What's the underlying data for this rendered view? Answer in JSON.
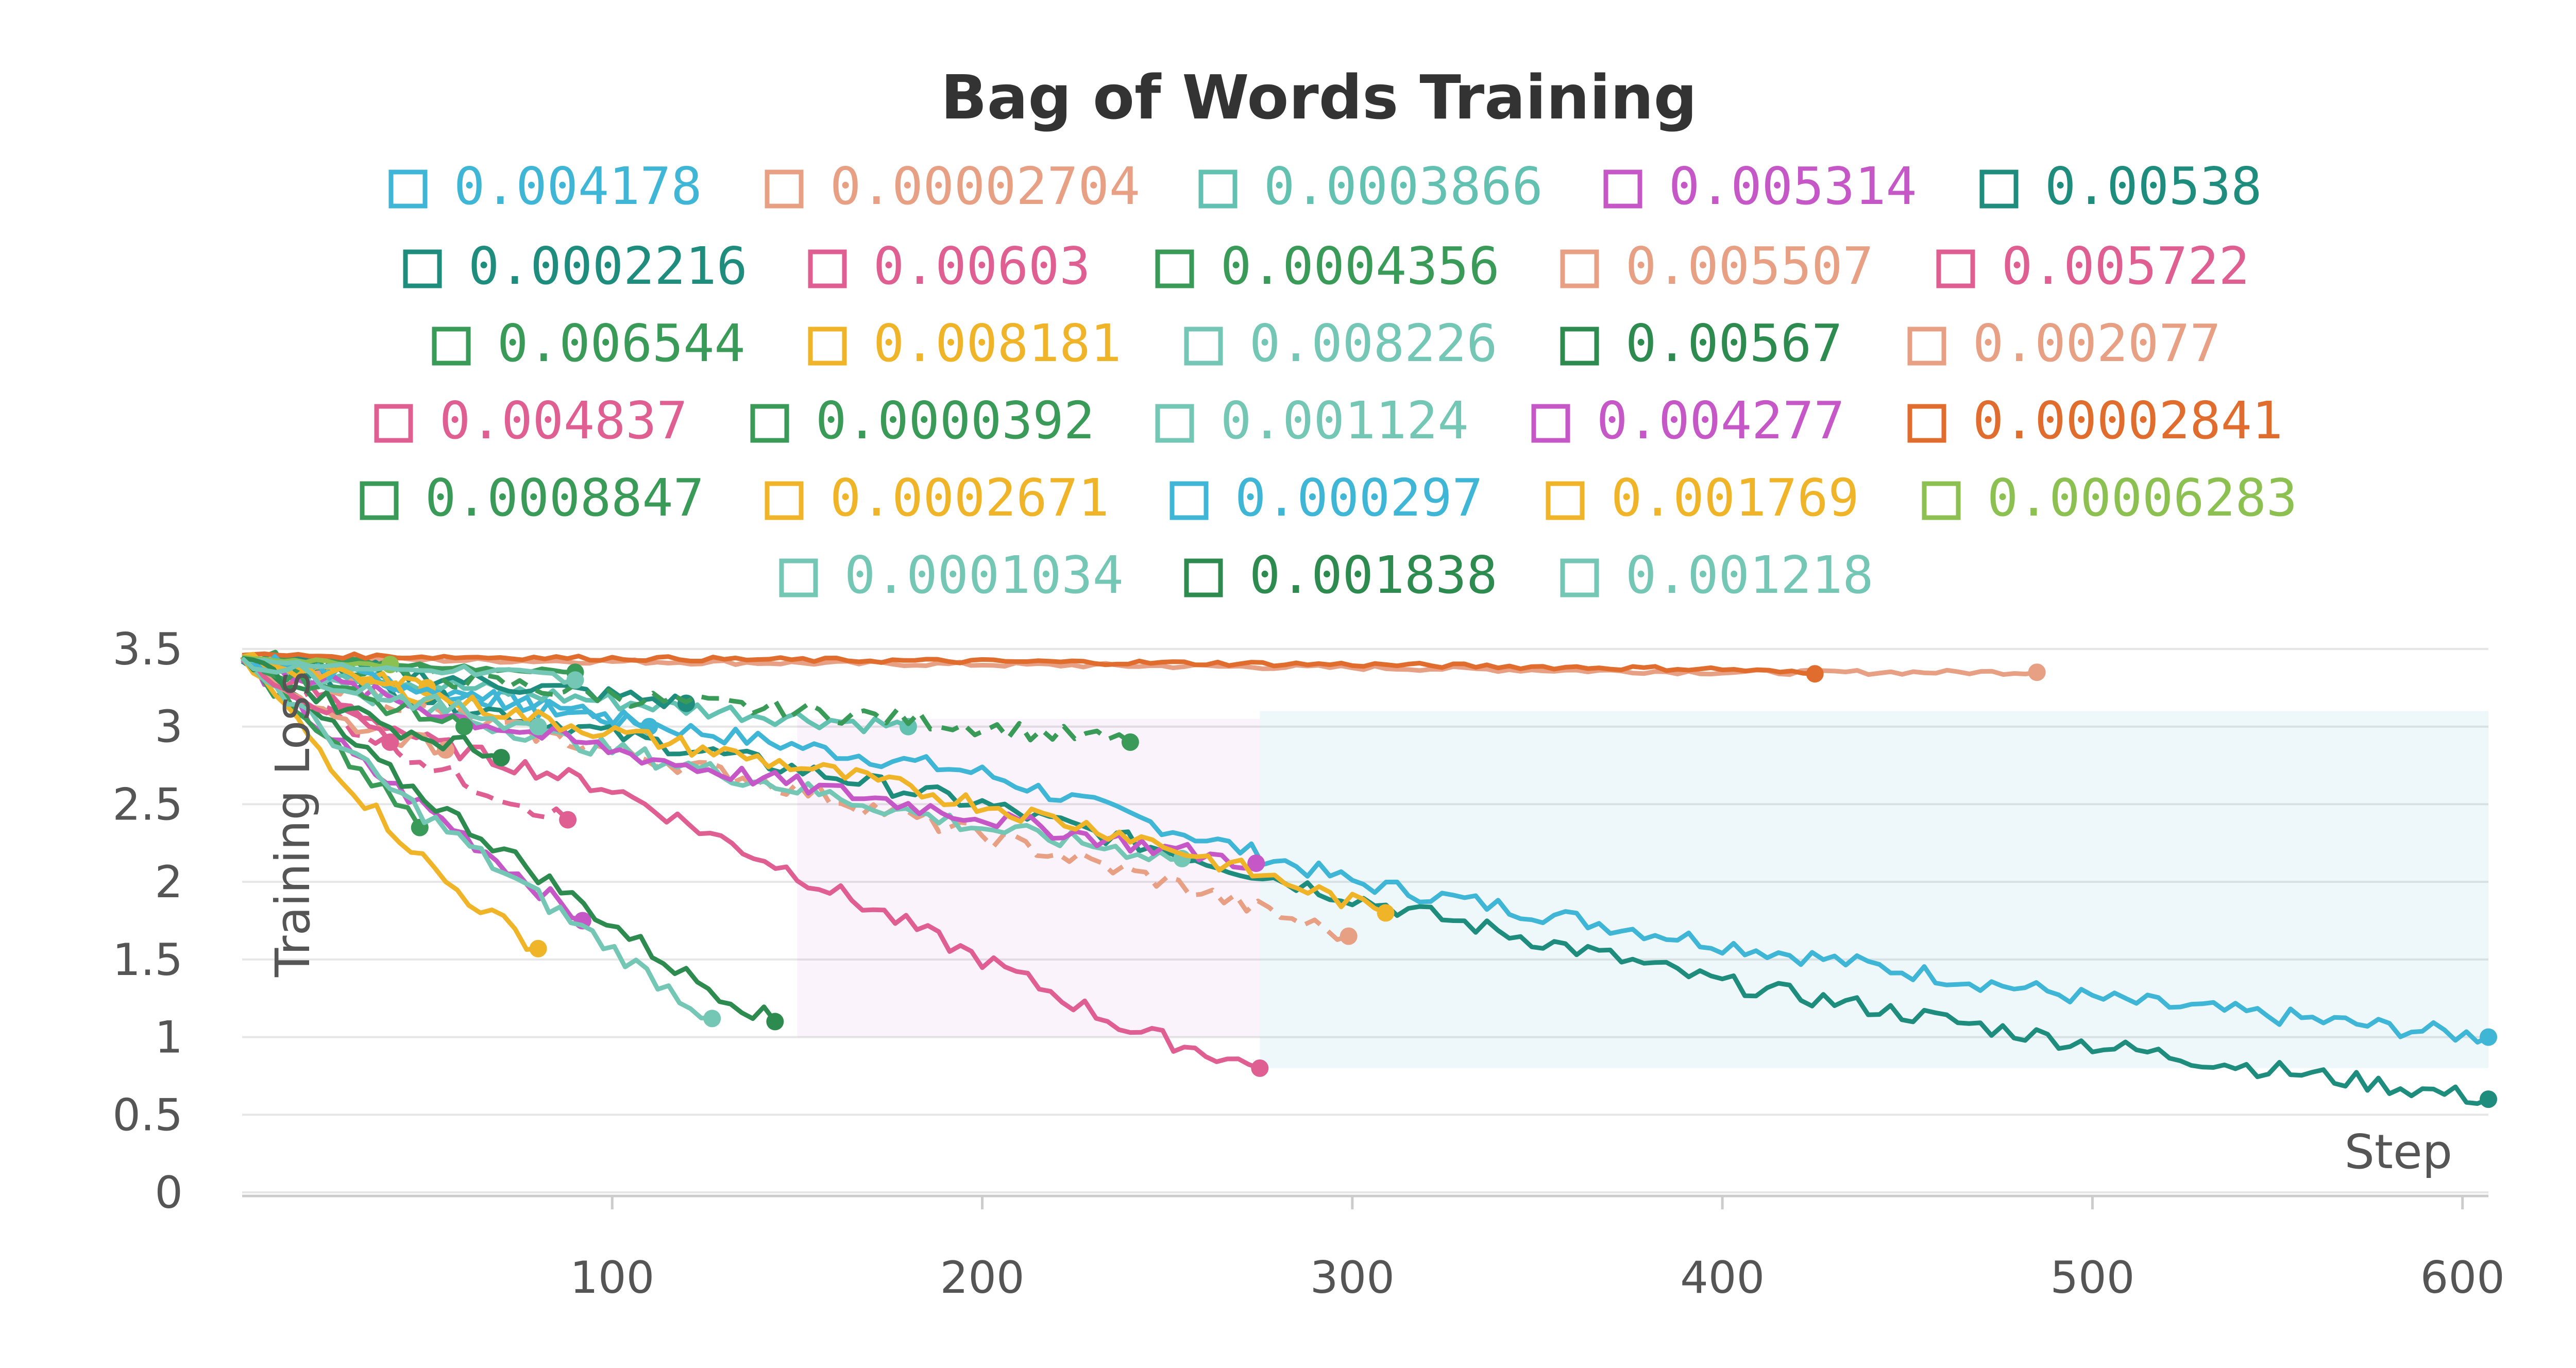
{
  "chart_data": {
    "type": "line",
    "title": "Bag of Words Training",
    "xlabel": "Step",
    "ylabel": "Training Loss",
    "xlim": [
      0,
      607
    ],
    "ylim": [
      0,
      3.5
    ],
    "x_ticks": [
      100,
      200,
      300,
      400,
      500,
      600
    ],
    "y_ticks": [
      0,
      0.5,
      1,
      1.5,
      2,
      2.5,
      3,
      3.5
    ],
    "y_tick_labels": [
      "0",
      "0.5",
      "1",
      "1.5",
      "2",
      "2.5",
      "3",
      "3.5"
    ],
    "grid": true,
    "legend_position": "top",
    "series": [
      {
        "name": "0.004178",
        "color": "#3fb6d6",
        "dash": false,
        "x": [
          0,
          100,
          200,
          300,
          400,
          500,
          607
        ],
        "y": [
          3.45,
          3.05,
          2.7,
          2.0,
          1.6,
          1.25,
          1.0
        ]
      },
      {
        "name": "0.00002704",
        "color": "#e8a084",
        "dash": false,
        "x": [
          0,
          100,
          200,
          300,
          400,
          485
        ],
        "y": [
          3.44,
          3.42,
          3.4,
          3.38,
          3.35,
          3.35
        ]
      },
      {
        "name": "0.0003866",
        "color": "#62c1b0",
        "dash": false,
        "x": [
          0,
          60,
          120,
          180
        ],
        "y": [
          3.43,
          3.25,
          3.12,
          3.0
        ]
      },
      {
        "name": "0.005314",
        "color": "#c557c7",
        "dash": false,
        "x": [
          0,
          30,
          60,
          92
        ],
        "y": [
          3.45,
          2.8,
          2.3,
          1.75
        ]
      },
      {
        "name": "0.00538",
        "color": "#1f8d7e",
        "dash": false,
        "x": [
          0,
          100,
          200,
          300,
          400,
          500,
          607
        ],
        "y": [
          3.42,
          2.95,
          2.5,
          1.9,
          1.35,
          0.95,
          0.6
        ]
      },
      {
        "name": "0.0002216",
        "color": "#1f8d7e",
        "dash": false,
        "x": [
          0,
          60,
          120
        ],
        "y": [
          3.45,
          3.3,
          3.15
        ]
      },
      {
        "name": "0.00603",
        "color": "#e05f93",
        "dash": false,
        "x": [
          0,
          50,
          100,
          150,
          200,
          240,
          275
        ],
        "y": [
          3.43,
          2.9,
          2.6,
          2.05,
          1.5,
          1.05,
          0.8
        ]
      },
      {
        "name": "0.0004356",
        "color": "#3a9a58",
        "dash": true,
        "x": [
          0,
          60,
          120,
          180,
          240
        ],
        "y": [
          3.45,
          3.3,
          3.15,
          3.05,
          2.9
        ]
      },
      {
        "name": "0.005507",
        "color": "#e8a084",
        "dash": true,
        "x": [
          0,
          50,
          100,
          150,
          200,
          250,
          299
        ],
        "y": [
          3.45,
          3.1,
          2.85,
          2.6,
          2.3,
          2.0,
          1.65
        ]
      },
      {
        "name": "0.005722",
        "color": "#e05f93",
        "dash": true,
        "x": [
          0,
          30,
          60,
          88
        ],
        "y": [
          3.44,
          3.0,
          2.65,
          2.4
        ]
      },
      {
        "name": "0.006544",
        "color": "#3a9a58",
        "dash": false,
        "x": [
          0,
          20,
          35,
          48
        ],
        "y": [
          3.44,
          2.95,
          2.65,
          2.35
        ]
      },
      {
        "name": "0.008181",
        "color": "#f0b429",
        "dash": false,
        "x": [
          0,
          30,
          55,
          80
        ],
        "y": [
          3.45,
          2.6,
          2.0,
          1.57
        ]
      },
      {
        "name": "0.008226",
        "color": "#74c6b5",
        "dash": false,
        "x": [
          0,
          40,
          80,
          127
        ],
        "y": [
          3.44,
          2.6,
          1.9,
          1.12
        ]
      },
      {
        "name": "0.00567",
        "color": "#2e8b50",
        "dash": false,
        "x": [
          0,
          40,
          80,
          120,
          144
        ],
        "y": [
          3.45,
          2.7,
          2.05,
          1.4,
          1.1
        ]
      },
      {
        "name": "0.002077",
        "color": "#e8a084",
        "dash": false,
        "x": [
          0,
          25,
          55
        ],
        "y": [
          3.45,
          3.05,
          2.85
        ]
      },
      {
        "name": "0.004837",
        "color": "#e05f93",
        "dash": false,
        "x": [
          0,
          20,
          40
        ],
        "y": [
          3.45,
          3.15,
          2.9
        ]
      },
      {
        "name": "0.0000392",
        "color": "#3a9a58",
        "dash": false,
        "x": [
          0,
          30,
          60,
          90
        ],
        "y": [
          3.44,
          3.42,
          3.38,
          3.35
        ]
      },
      {
        "name": "0.001124",
        "color": "#74c6b5",
        "dash": false,
        "x": [
          0,
          50,
          100,
          150,
          200,
          254
        ],
        "y": [
          3.45,
          3.1,
          2.85,
          2.6,
          2.35,
          2.15
        ]
      },
      {
        "name": "0.004277",
        "color": "#c557c7",
        "dash": false,
        "x": [
          0,
          60,
          120,
          180,
          240,
          274
        ],
        "y": [
          3.44,
          3.05,
          2.75,
          2.5,
          2.25,
          2.12
        ]
      },
      {
        "name": "0.00002841",
        "color": "#e06d2e",
        "dash": false,
        "x": [
          0,
          100,
          200,
          300,
          400,
          425
        ],
        "y": [
          3.46,
          3.44,
          3.42,
          3.4,
          3.37,
          3.34
        ]
      },
      {
        "name": "0.0008847",
        "color": "#3a9a58",
        "dash": false,
        "x": [
          0,
          30,
          60
        ],
        "y": [
          3.45,
          3.2,
          3.0
        ]
      },
      {
        "name": "0.0002671",
        "color": "#f0b429",
        "dash": false,
        "x": [
          0,
          20,
          50
        ],
        "y": [
          3.45,
          3.35,
          3.25
        ]
      },
      {
        "name": "0.000297",
        "color": "#3fb6d6",
        "dash": false,
        "x": [
          0,
          50,
          110
        ],
        "y": [
          3.44,
          3.25,
          3.0
        ]
      },
      {
        "name": "0.001769",
        "color": "#f0b429",
        "dash": false,
        "x": [
          0,
          80,
          160,
          240,
          309
        ],
        "y": [
          3.45,
          3.05,
          2.7,
          2.3,
          1.8
        ]
      },
      {
        "name": "0.00006283",
        "color": "#8cc152",
        "dash": false,
        "x": [
          0,
          20,
          40
        ],
        "y": [
          3.45,
          3.42,
          3.4
        ]
      },
      {
        "name": "0.0001034",
        "color": "#74c6b5",
        "dash": false,
        "x": [
          0,
          30,
          60,
          90
        ],
        "y": [
          3.44,
          3.38,
          3.35,
          3.3
        ]
      },
      {
        "name": "0.001838",
        "color": "#2e8b50",
        "dash": false,
        "x": [
          0,
          20,
          40,
          60,
          70
        ],
        "y": [
          3.44,
          3.2,
          3.0,
          2.88,
          2.8
        ]
      },
      {
        "name": "0.001218",
        "color": "#74c6b5",
        "dash": false,
        "x": [
          0,
          40,
          80
        ],
        "y": [
          3.44,
          3.2,
          3.0
        ]
      }
    ]
  }
}
